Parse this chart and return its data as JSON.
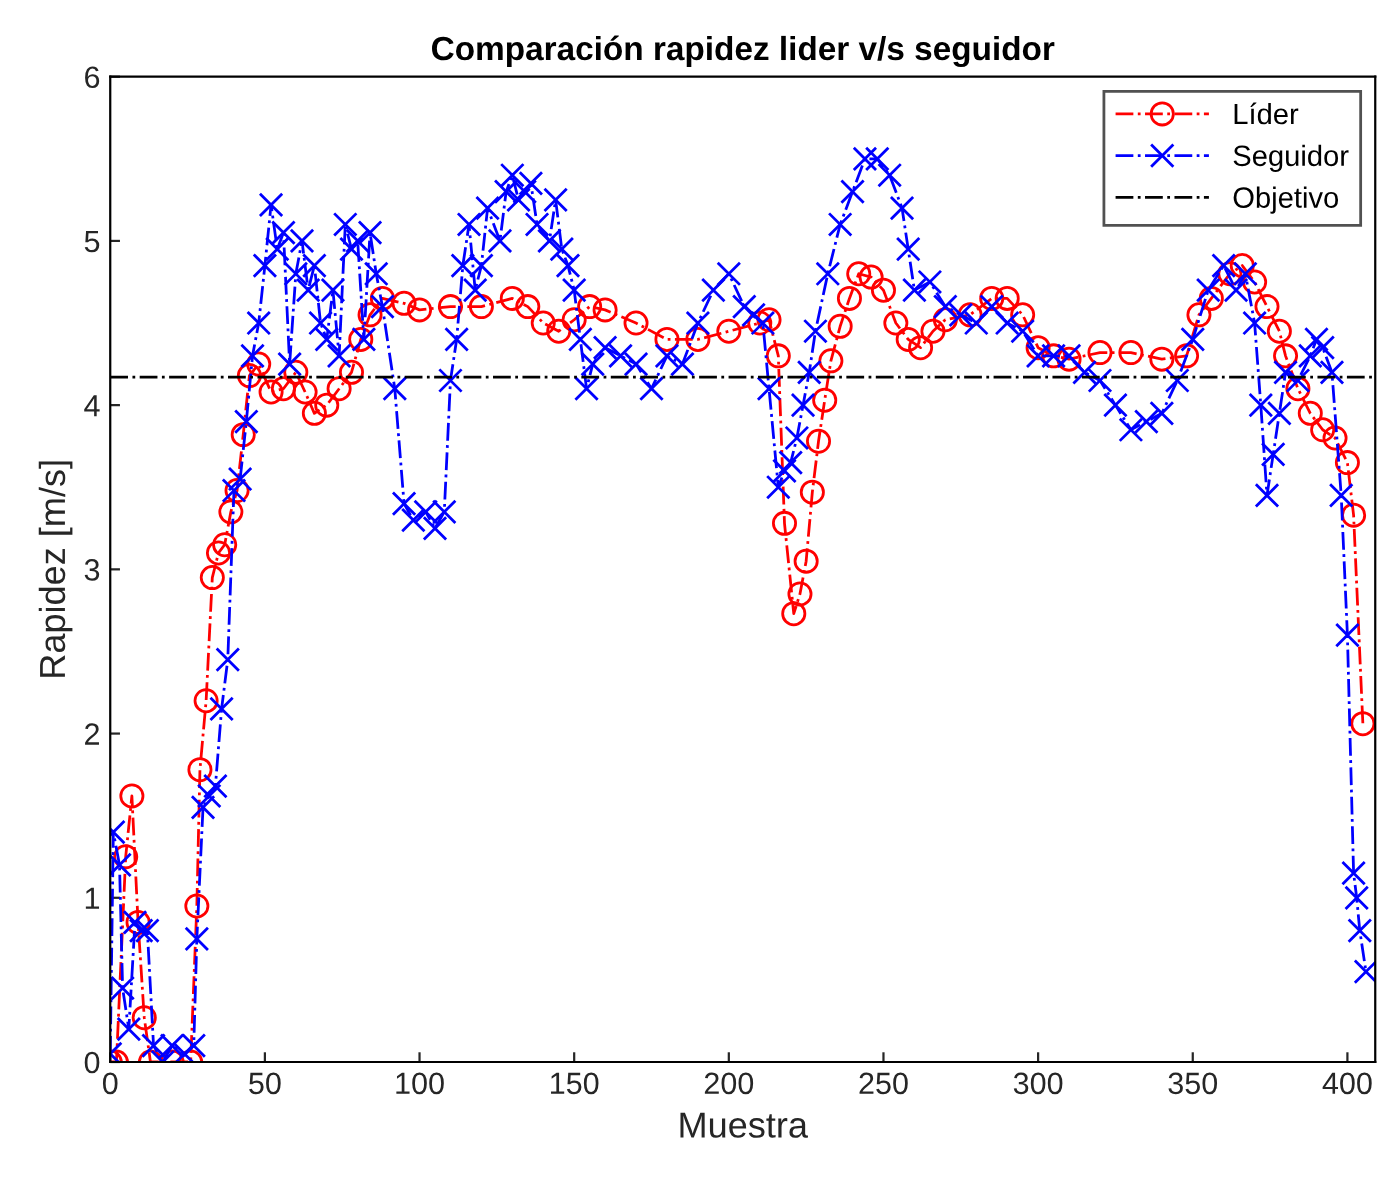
{
  "chart_data": {
    "type": "line",
    "title": "Comparación rapidez lider v/s seguidor",
    "xlabel": "Muestra",
    "ylabel": "Rapidez [m/s]",
    "xlim": [
      0,
      409
    ],
    "xticks": [
      0,
      50,
      100,
      150,
      200,
      250,
      300,
      350,
      400
    ],
    "ylim": [
      0,
      6
    ],
    "yticks": [
      0,
      1,
      2,
      3,
      4,
      5,
      6
    ],
    "grid": false,
    "legend": "top right",
    "line_style": "dashdot",
    "series": [
      {
        "name": "Líder",
        "color": "#ff0000",
        "marker": "circle",
        "x": [
          0,
          2,
          5,
          7,
          9,
          11,
          13,
          20,
          26,
          28,
          29,
          31,
          33,
          35,
          37,
          39,
          41,
          43,
          45,
          48,
          52,
          56,
          60,
          63,
          66,
          70,
          74,
          78,
          81,
          84,
          88,
          95,
          100,
          110,
          120,
          130,
          135,
          140,
          145,
          150,
          155,
          160,
          170,
          180,
          190,
          200,
          210,
          213,
          216,
          218,
          221,
          223,
          225,
          227,
          229,
          231,
          233,
          236,
          239,
          242,
          246,
          250,
          254,
          258,
          262,
          266,
          270,
          278,
          285,
          290,
          295,
          300,
          305,
          310,
          320,
          330,
          340,
          348,
          352,
          356,
          362,
          366,
          370,
          374,
          378,
          380,
          384,
          388,
          392,
          396,
          400,
          402,
          405
        ],
        "values": [
          0,
          0,
          1.25,
          1.62,
          0.85,
          0.27,
          0,
          0,
          0,
          0.95,
          1.78,
          2.2,
          2.95,
          3.1,
          3.15,
          3.35,
          3.48,
          3.82,
          4.18,
          4.25,
          4.08,
          4.1,
          4.2,
          4.08,
          3.95,
          4.0,
          4.1,
          4.2,
          4.4,
          4.55,
          4.65,
          4.62,
          4.58,
          4.6,
          4.6,
          4.65,
          4.6,
          4.5,
          4.45,
          4.52,
          4.6,
          4.58,
          4.5,
          4.4,
          4.4,
          4.45,
          4.5,
          4.52,
          4.3,
          3.28,
          2.73,
          2.85,
          3.05,
          3.47,
          3.78,
          4.03,
          4.27,
          4.48,
          4.65,
          4.8,
          4.78,
          4.7,
          4.5,
          4.4,
          4.35,
          4.45,
          4.52,
          4.55,
          4.65,
          4.65,
          4.55,
          4.35,
          4.3,
          4.28,
          4.32,
          4.32,
          4.28,
          4.3,
          4.55,
          4.65,
          4.8,
          4.85,
          4.75,
          4.6,
          4.45,
          4.3,
          4.1,
          3.95,
          3.85,
          3.8,
          3.65,
          3.33,
          2.06
        ]
      },
      {
        "name": "Seguidor",
        "color": "#0000ff",
        "marker": "cross",
        "x": [
          0,
          1,
          3,
          4,
          6,
          8,
          10,
          12,
          14,
          17,
          20,
          24,
          27,
          28,
          30,
          32,
          34,
          36,
          38,
          40,
          42,
          44,
          46,
          48,
          50,
          52,
          54,
          56,
          58,
          60,
          62,
          64,
          66,
          68,
          70,
          72,
          74,
          76,
          78,
          80,
          82,
          84,
          86,
          88,
          92,
          95,
          98,
          102,
          105,
          108,
          110,
          112,
          114,
          116,
          118,
          120,
          122,
          126,
          128,
          130,
          132,
          134,
          136,
          138,
          142,
          144,
          146,
          148,
          150,
          152,
          154,
          156,
          160,
          165,
          170,
          175,
          180,
          185,
          190,
          195,
          200,
          205,
          208,
          211,
          213,
          216,
          218,
          220,
          222,
          224,
          226,
          228,
          232,
          236,
          240,
          244,
          248,
          252,
          256,
          258,
          260,
          265,
          270,
          275,
          280,
          285,
          290,
          295,
          300,
          305,
          310,
          315,
          320,
          325,
          330,
          335,
          340,
          345,
          350,
          355,
          360,
          364,
          367,
          370,
          372,
          374,
          376,
          378,
          380,
          384,
          388,
          390,
          392,
          395,
          398,
          400,
          402,
          403,
          404,
          406
        ],
        "values": [
          0.05,
          1.4,
          1.2,
          0.45,
          0.2,
          0.85,
          0.8,
          0.8,
          0.1,
          0.0,
          0.1,
          0.05,
          0.1,
          0.75,
          1.55,
          1.62,
          1.68,
          2.15,
          2.45,
          3.48,
          3.55,
          3.9,
          4.3,
          4.5,
          4.85,
          5.22,
          4.95,
          5.05,
          4.25,
          4.8,
          5.0,
          4.7,
          4.85,
          4.5,
          4.4,
          4.7,
          4.3,
          5.1,
          4.95,
          5.0,
          4.4,
          5.05,
          4.8,
          4.6,
          4.1,
          3.4,
          3.3,
          3.35,
          3.25,
          3.35,
          4.15,
          4.4,
          4.85,
          5.1,
          4.7,
          4.85,
          5.2,
          5.0,
          5.3,
          5.4,
          5.25,
          5.3,
          5.35,
          5.1,
          5.0,
          5.25,
          4.95,
          4.85,
          4.7,
          4.4,
          4.1,
          4.25,
          4.35,
          4.3,
          4.25,
          4.1,
          4.3,
          4.25,
          4.5,
          4.7,
          4.8,
          4.6,
          4.55,
          4.5,
          4.1,
          3.5,
          3.6,
          3.65,
          3.8,
          4.0,
          4.2,
          4.45,
          4.8,
          5.1,
          5.3,
          5.5,
          5.5,
          5.4,
          5.2,
          4.95,
          4.7,
          4.75,
          4.6,
          4.55,
          4.5,
          4.6,
          4.5,
          4.45,
          4.3,
          4.3,
          4.3,
          4.2,
          4.15,
          4.0,
          3.85,
          3.9,
          3.95,
          4.15,
          4.4,
          4.7,
          4.85,
          4.7,
          4.8,
          4.5,
          4.0,
          3.45,
          3.7,
          3.95,
          4.2,
          4.15,
          4.3,
          4.4,
          4.35,
          4.2,
          3.45,
          2.6,
          1.15,
          1.0,
          0.8,
          0.55
        ]
      }
    ],
    "ref_lines": [
      {
        "axis": "y",
        "value": 4.17,
        "label": "Objetivo",
        "color": "#000000",
        "line_style": "dashdot"
      }
    ]
  }
}
